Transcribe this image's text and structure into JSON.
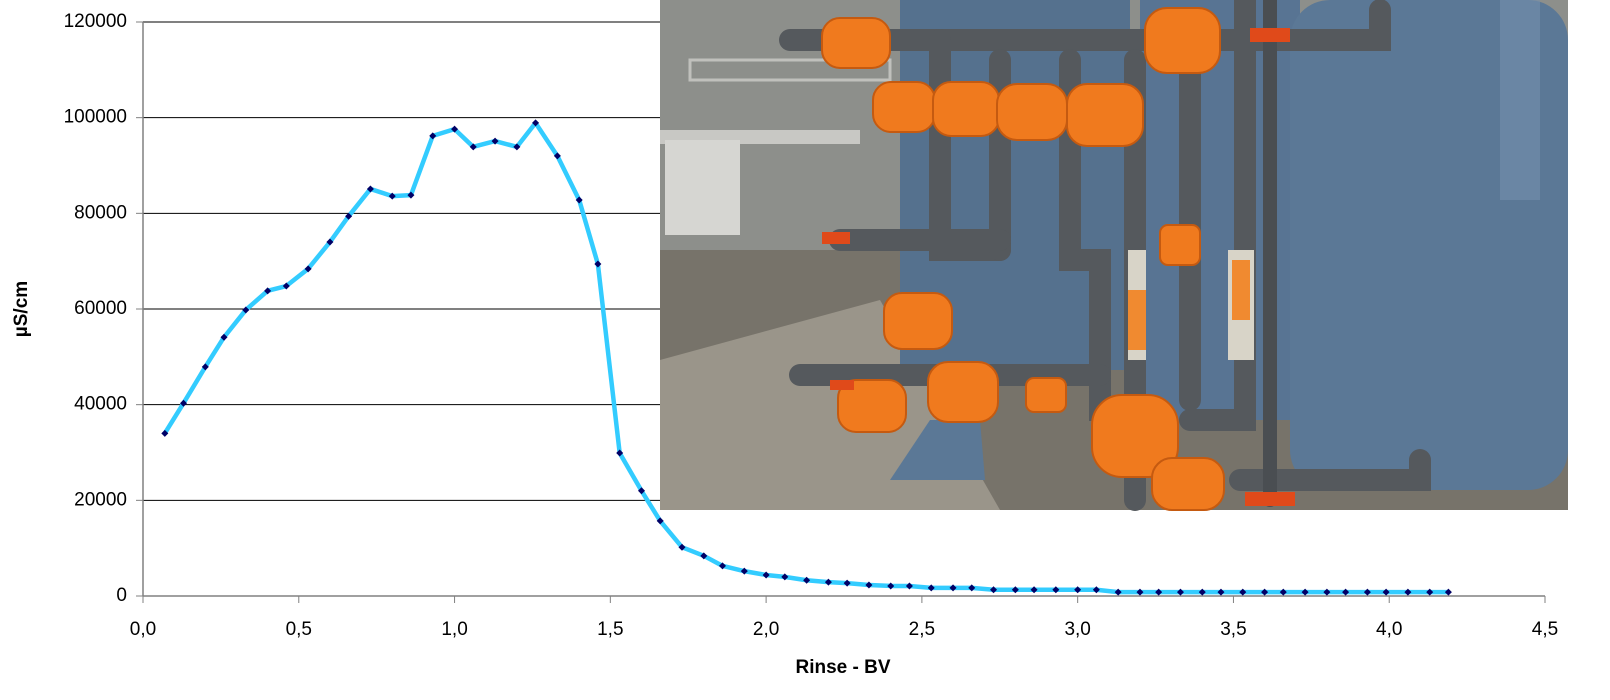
{
  "chart_data": {
    "type": "line",
    "x_label": "Rinse - BV",
    "y_label": "µS/cm",
    "x": [
      0.07,
      0.13,
      0.2,
      0.26,
      0.33,
      0.4,
      0.46,
      0.53,
      0.6,
      0.66,
      0.73,
      0.8,
      0.86,
      0.93,
      1.0,
      1.06,
      1.13,
      1.2,
      1.26,
      1.33,
      1.4,
      1.46,
      1.53,
      1.6,
      1.66,
      1.73,
      1.8,
      1.86,
      1.93,
      2.0,
      2.06,
      2.13,
      2.2,
      2.26,
      2.33,
      2.4,
      2.46,
      2.53,
      2.6,
      2.66,
      2.73,
      2.8,
      2.86,
      2.93,
      3.0,
      3.06,
      3.13,
      3.2,
      3.26,
      3.33,
      3.4,
      3.46,
      3.53,
      3.6,
      3.66,
      3.73,
      3.8,
      3.86,
      3.93,
      3.99,
      4.06,
      4.13,
      4.19
    ],
    "series": [
      {
        "color": "#33ccff",
        "marker_color": "#000066",
        "values": [
          34000,
          40300,
          47900,
          54100,
          59800,
          63800,
          64800,
          68400,
          74000,
          79400,
          85100,
          83600,
          83800,
          96200,
          97600,
          93900,
          95100,
          93900,
          98900,
          92000,
          82800,
          69400,
          29900,
          22000,
          15700,
          10200,
          8400,
          6300,
          5200,
          4400,
          4000,
          3300,
          2900,
          2700,
          2300,
          2100,
          2100,
          1700,
          1700,
          1700,
          1300,
          1300,
          1300,
          1300,
          1300,
          1300,
          800,
          800,
          800,
          800,
          800,
          800,
          800,
          800,
          800,
          800,
          800,
          800,
          800,
          800,
          800,
          800,
          800
        ]
      }
    ],
    "xlim": [
      0,
      4.5
    ],
    "xticks": [
      {
        "value": 0,
        "label": "0,0"
      },
      {
        "value": 0.5,
        "label": "0,5"
      },
      {
        "value": 1,
        "label": "1,0"
      },
      {
        "value": 1.5,
        "label": "1,5"
      },
      {
        "value": 2,
        "label": "2,0"
      },
      {
        "value": 2.5,
        "label": "2,5"
      },
      {
        "value": 3,
        "label": "3,0"
      },
      {
        "value": 3.5,
        "label": "3,5"
      },
      {
        "value": 4,
        "label": "4,0"
      },
      {
        "value": 4.5,
        "label": "4,5"
      }
    ],
    "ylim": [
      0,
      120000
    ],
    "yticks": [
      0,
      20000,
      40000,
      60000,
      80000,
      100000,
      120000
    ],
    "grid": true
  }
}
